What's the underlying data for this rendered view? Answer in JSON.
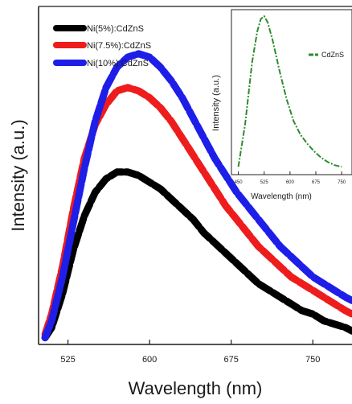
{
  "chart_data": [
    {
      "type": "line",
      "xlabel": "Wavelength (nm)",
      "ylabel": "Intensity (a.u.)",
      "x_ticks": [
        "525",
        "600",
        "675",
        "750"
      ],
      "xlim": [
        498,
        786
      ],
      "ylim": [
        0,
        1
      ],
      "grid": false,
      "legend_position": "top-left",
      "series": [
        {
          "name": "Ni(5%):CdZnS",
          "color": "#000000",
          "x": [
            504,
            510,
            520,
            530,
            540,
            550,
            560,
            570,
            580,
            590,
            600,
            610,
            620,
            630,
            640,
            650,
            660,
            670,
            680,
            690,
            700,
            710,
            720,
            730,
            740,
            750,
            760,
            770,
            780,
            786
          ],
          "y": [
            0.02,
            0.05,
            0.15,
            0.28,
            0.38,
            0.45,
            0.49,
            0.51,
            0.51,
            0.5,
            0.48,
            0.46,
            0.43,
            0.4,
            0.37,
            0.33,
            0.3,
            0.27,
            0.24,
            0.21,
            0.18,
            0.16,
            0.14,
            0.12,
            0.1,
            0.09,
            0.07,
            0.06,
            0.05,
            0.04
          ]
        },
        {
          "name": "Ni(7.5%):CdZnS",
          "color": "#ee1c1c",
          "x": [
            504,
            510,
            520,
            530,
            540,
            550,
            560,
            570,
            580,
            590,
            600,
            610,
            620,
            630,
            640,
            650,
            660,
            670,
            680,
            690,
            700,
            710,
            720,
            730,
            740,
            750,
            760,
            770,
            780,
            786
          ],
          "y": [
            0.03,
            0.09,
            0.23,
            0.4,
            0.55,
            0.65,
            0.71,
            0.75,
            0.76,
            0.75,
            0.73,
            0.7,
            0.66,
            0.61,
            0.56,
            0.51,
            0.46,
            0.41,
            0.37,
            0.33,
            0.29,
            0.26,
            0.23,
            0.2,
            0.18,
            0.16,
            0.14,
            0.12,
            0.1,
            0.09
          ]
        },
        {
          "name": "Ni(10%):CdZnS",
          "color": "#1e1ee8",
          "x": [
            504,
            510,
            520,
            530,
            540,
            550,
            560,
            570,
            580,
            590,
            600,
            610,
            620,
            630,
            640,
            650,
            660,
            670,
            680,
            690,
            700,
            710,
            720,
            730,
            740,
            750,
            760,
            770,
            780,
            786
          ],
          "y": [
            0.02,
            0.07,
            0.2,
            0.36,
            0.52,
            0.66,
            0.76,
            0.82,
            0.85,
            0.86,
            0.85,
            0.82,
            0.78,
            0.73,
            0.67,
            0.61,
            0.55,
            0.5,
            0.45,
            0.41,
            0.37,
            0.33,
            0.29,
            0.26,
            0.23,
            0.2,
            0.18,
            0.16,
            0.14,
            0.13
          ]
        }
      ]
    },
    {
      "type": "line",
      "inset": true,
      "xlabel": "Wavelength (nm)",
      "ylabel": "Intensity (a.u.)",
      "x_ticks": [
        "450",
        "525",
        "600",
        "675",
        "750"
      ],
      "xlim": [
        430,
        780
      ],
      "ylim": [
        0,
        1
      ],
      "grid": false,
      "legend_position": "right",
      "series": [
        {
          "name": "CdZnS",
          "color": "#2e8b2e",
          "x": [
            450,
            470,
            490,
            505,
            515,
            525,
            535,
            550,
            570,
            590,
            610,
            630,
            650,
            670,
            690,
            710,
            730,
            750
          ],
          "y": [
            0.02,
            0.3,
            0.7,
            0.9,
            0.98,
            1.0,
            0.96,
            0.84,
            0.64,
            0.46,
            0.32,
            0.23,
            0.17,
            0.12,
            0.08,
            0.05,
            0.03,
            0.02
          ]
        }
      ]
    }
  ]
}
